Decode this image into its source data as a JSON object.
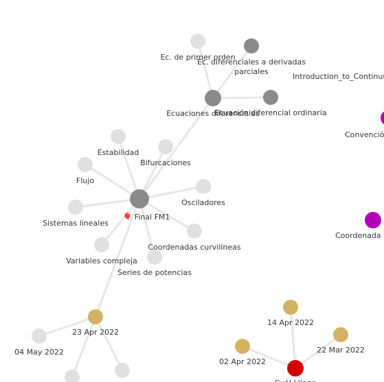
{
  "graph": {
    "nodes": [
      {
        "id": "final",
        "label": "Final FM1",
        "prefix": "🎈",
        "color": "#8a8a8a"
      },
      {
        "id": "ecdif",
        "label": "Ecuaciones diferenciales",
        "color": "#8a8a8a"
      },
      {
        "id": "ecprim",
        "label": "Ec. de primer orden",
        "color": "#e0e0e0"
      },
      {
        "id": "ecpar",
        "label": "Ec. diferenciales a derivadas\nparciales",
        "color": "#8a8a8a"
      },
      {
        "id": "ecord",
        "label": "Ecuación diferencial ordinaria",
        "color": "#8a8a8a"
      },
      {
        "id": "intro",
        "label": "Introduction_to_Continuu",
        "color": "#e0e0e0"
      },
      {
        "id": "conv",
        "label": "Convención",
        "color": "#b400b4"
      },
      {
        "id": "coord",
        "label": "Coordenada n",
        "color": "#b400b4"
      },
      {
        "id": "estab",
        "label": "Estabilidad",
        "color": "#e0e0e0"
      },
      {
        "id": "bifur",
        "label": "Bifurcaciones",
        "color": "#e0e0e0"
      },
      {
        "id": "flujo",
        "label": "Flujo",
        "color": "#e0e0e0"
      },
      {
        "id": "oscil",
        "label": "Osciladores",
        "color": "#e0e0e0"
      },
      {
        "id": "sislin",
        "label": "Sistemas lineales",
        "color": "#e0e0e0"
      },
      {
        "id": "coordcurv",
        "label": "Coordenadas curvilíneas",
        "color": "#e0e0e0"
      },
      {
        "id": "varcomp",
        "label": "Variables compleja",
        "color": "#e0e0e0"
      },
      {
        "id": "series",
        "label": "Series de potencias",
        "color": "#e0e0e0"
      },
      {
        "id": "d23apr",
        "label": "23 Apr 2022",
        "color": "#d4b263"
      },
      {
        "id": "d04may",
        "label": "04 May 2022",
        "color": "#e0e0e0"
      },
      {
        "id": "n_b1",
        "label": "",
        "color": "#e0e0e0"
      },
      {
        "id": "n_b2",
        "label": "",
        "color": "#e0e0e0"
      },
      {
        "id": "d14apr",
        "label": "14 Apr 2022",
        "color": "#d4b263"
      },
      {
        "id": "d02apr",
        "label": "02 Apr 2022",
        "color": "#d4b263"
      },
      {
        "id": "d22mar",
        "label": "22 Mar 2022",
        "color": "#d4b263"
      },
      {
        "id": "red",
        "label": "Cuál Llínea",
        "color": "#d40000"
      }
    ],
    "edges": [
      [
        "final",
        "ecdif"
      ],
      [
        "final",
        "estab"
      ],
      [
        "final",
        "bifur"
      ],
      [
        "final",
        "flujo"
      ],
      [
        "final",
        "oscil"
      ],
      [
        "final",
        "sislin"
      ],
      [
        "final",
        "coordcurv"
      ],
      [
        "final",
        "varcomp"
      ],
      [
        "final",
        "series"
      ],
      [
        "final",
        "d23apr"
      ],
      [
        "ecdif",
        "ecprim"
      ],
      [
        "ecdif",
        "ecpar"
      ],
      [
        "ecdif",
        "ecord"
      ],
      [
        "d23apr",
        "d04may"
      ],
      [
        "d23apr",
        "n_b1"
      ],
      [
        "d23apr",
        "n_b2"
      ],
      [
        "red",
        "d14apr"
      ],
      [
        "red",
        "d02apr"
      ],
      [
        "red",
        "d22mar"
      ]
    ]
  }
}
